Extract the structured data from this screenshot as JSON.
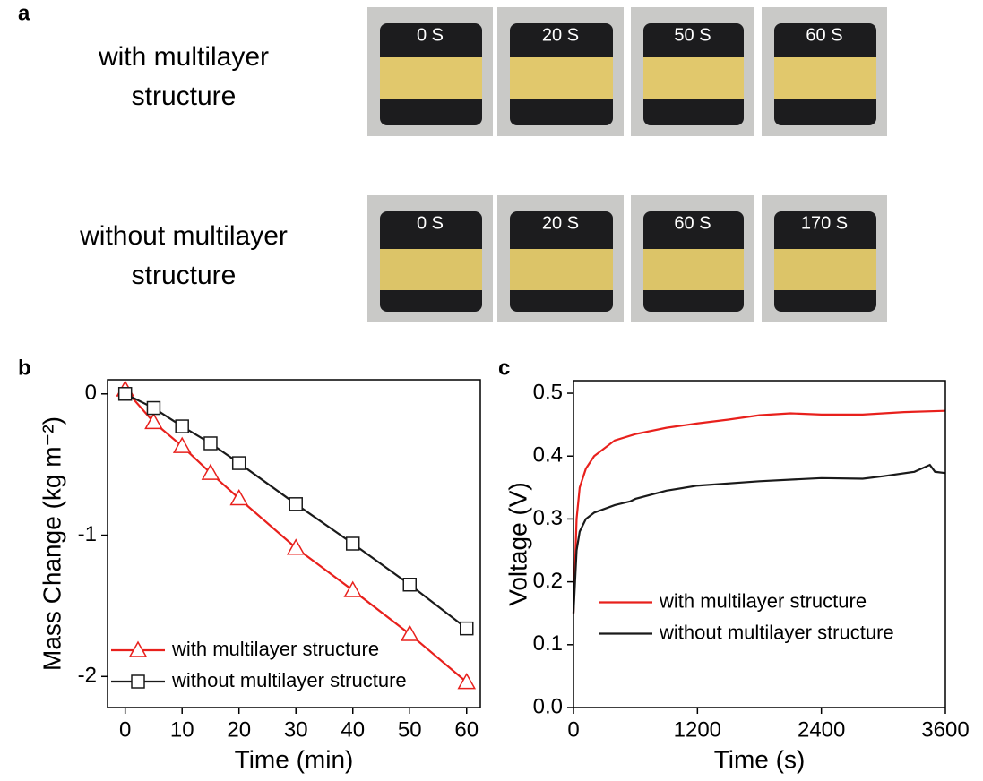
{
  "photo_panel": {
    "label": "a",
    "rows": [
      {
        "label": "with multilayer structure",
        "photos": [
          "0 S",
          "20 S",
          "50 S",
          "60 S"
        ]
      },
      {
        "label": "without multilayer structure",
        "photos": [
          "0 S",
          "20 S",
          "60 S",
          "170 S"
        ]
      }
    ]
  },
  "chart_data": [
    {
      "type": "line",
      "panel_label": "b",
      "x_label": "Time (min)",
      "y_label": "Mass Change (kg m⁻²)",
      "xlim": [
        -3.1,
        62.4
      ],
      "ylim": [
        -2.22,
        0.1
      ],
      "xticks": [
        0,
        10,
        20,
        30,
        40,
        50,
        60
      ],
      "yticks": [
        -2,
        -1,
        0
      ],
      "legend": "lower-left",
      "series": [
        {
          "name": "with multilayer structure",
          "color": "#e8201c",
          "marker": "triangle",
          "x": [
            0,
            5,
            10,
            15,
            20,
            30,
            40,
            50,
            60
          ],
          "values": [
            0.03,
            -0.2,
            -0.37,
            -0.56,
            -0.74,
            -1.09,
            -1.39,
            -1.7,
            -2.04
          ]
        },
        {
          "name": "without multilayer structure",
          "color": "#1a1a1a",
          "marker": "square",
          "x": [
            0,
            5,
            10,
            15,
            20,
            30,
            40,
            50,
            60
          ],
          "values": [
            0,
            -0.1,
            -0.23,
            -0.35,
            -0.49,
            -0.78,
            -1.06,
            -1.35,
            -1.66
          ]
        }
      ]
    },
    {
      "type": "line",
      "panel_label": "c",
      "x_label": "Time (s)",
      "y_label": "Voltage (V)",
      "xlim": [
        0,
        3600
      ],
      "ylim": [
        0,
        0.52
      ],
      "xticks": [
        0,
        1200,
        2400,
        3600
      ],
      "yticks": [
        {
          "value": 0,
          "label": "0.0"
        },
        0.1,
        0.2,
        0.3,
        0.4,
        0.5
      ],
      "legend": "center-left",
      "series": [
        {
          "name": "with multilayer structure",
          "color": "#e8201c",
          "marker": "none",
          "x": [
            0,
            30,
            60,
            120,
            200,
            400,
            600,
            900,
            1200,
            1500,
            1800,
            2100,
            2400,
            2800,
            3200,
            3600
          ],
          "values": [
            0.15,
            0.3,
            0.35,
            0.38,
            0.4,
            0.425,
            0.435,
            0.445,
            0.452,
            0.458,
            0.465,
            0.468,
            0.466,
            0.466,
            0.47,
            0.472
          ]
        },
        {
          "name": "without multilayer structure",
          "color": "#1a1a1a",
          "marker": "none",
          "x": [
            0,
            30,
            60,
            120,
            200,
            400,
            550,
            600,
            900,
            1200,
            1800,
            2400,
            2800,
            3000,
            3300,
            3450,
            3500,
            3600
          ],
          "values": [
            0.15,
            0.25,
            0.28,
            0.3,
            0.31,
            0.322,
            0.328,
            0.332,
            0.345,
            0.353,
            0.36,
            0.365,
            0.364,
            0.368,
            0.375,
            0.386,
            0.375,
            0.373
          ]
        }
      ]
    }
  ]
}
